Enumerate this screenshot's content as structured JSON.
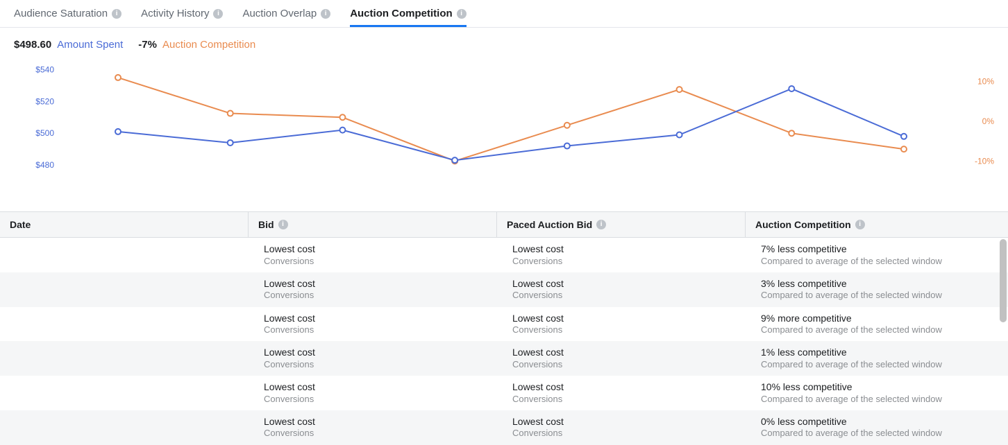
{
  "tabs": [
    {
      "label": "Audience Saturation",
      "active": false
    },
    {
      "label": "Activity History",
      "active": false
    },
    {
      "label": "Auction Overlap",
      "active": false
    },
    {
      "label": "Auction Competition",
      "active": true
    }
  ],
  "summary": {
    "amount_spent_value": "$498.60",
    "amount_spent_label": "Amount Spent",
    "competition_value": "-7%",
    "competition_label": "Auction Competition"
  },
  "chart": {
    "type": "line",
    "color_blue": "#4a6bd6",
    "color_orange": "#e98b4f",
    "left_axis": {
      "label": "Amount Spent",
      "min": 470,
      "max": 545,
      "ticks": [
        540,
        520,
        500,
        480
      ],
      "tick_labels": [
        "$540",
        "$520",
        "$500",
        "$480"
      ]
    },
    "right_axis": {
      "label": "Auction Competition",
      "min": -15,
      "max": 15,
      "ticks": [
        10,
        0,
        -10
      ],
      "tick_labels": [
        "10%",
        "0%",
        "-10%"
      ]
    },
    "n_points": 8,
    "series_blue": [
      501,
      494,
      502,
      483,
      492,
      499,
      528,
      498
    ],
    "series_orange": [
      11,
      2,
      1,
      -10,
      -1,
      8,
      -3,
      -7
    ],
    "marker_radius": 4,
    "line_width": 2
  },
  "table": {
    "columns": {
      "date": "Date",
      "bid": "Bid",
      "paced": "Paced Auction Bid",
      "comp": "Auction Competition"
    },
    "bid_main_default": "Lowest cost",
    "bid_sub_default": "Conversions",
    "comp_sub_default": "Compared to average of the selected window",
    "rows": [
      {
        "bid_main": "Lowest cost",
        "bid_sub": "Conversions",
        "paced_main": "Lowest cost",
        "paced_sub": "Conversions",
        "comp_main": "7% less competitive",
        "comp_sub": "Compared to average of the selected window"
      },
      {
        "bid_main": "Lowest cost",
        "bid_sub": "Conversions",
        "paced_main": "Lowest cost",
        "paced_sub": "Conversions",
        "comp_main": "3% less competitive",
        "comp_sub": "Compared to average of the selected window"
      },
      {
        "bid_main": "Lowest cost",
        "bid_sub": "Conversions",
        "paced_main": "Lowest cost",
        "paced_sub": "Conversions",
        "comp_main": "9% more competitive",
        "comp_sub": "Compared to average of the selected window"
      },
      {
        "bid_main": "Lowest cost",
        "bid_sub": "Conversions",
        "paced_main": "Lowest cost",
        "paced_sub": "Conversions",
        "comp_main": "1% less competitive",
        "comp_sub": "Compared to average of the selected window"
      },
      {
        "bid_main": "Lowest cost",
        "bid_sub": "Conversions",
        "paced_main": "Lowest cost",
        "paced_sub": "Conversions",
        "comp_main": "10% less competitive",
        "comp_sub": "Compared to average of the selected window"
      },
      {
        "bid_main": "Lowest cost",
        "bid_sub": "Conversions",
        "paced_main": "Lowest cost",
        "paced_sub": "Conversions",
        "comp_main": "0% less competitive",
        "comp_sub": "Compared to average of the selected window"
      }
    ]
  }
}
